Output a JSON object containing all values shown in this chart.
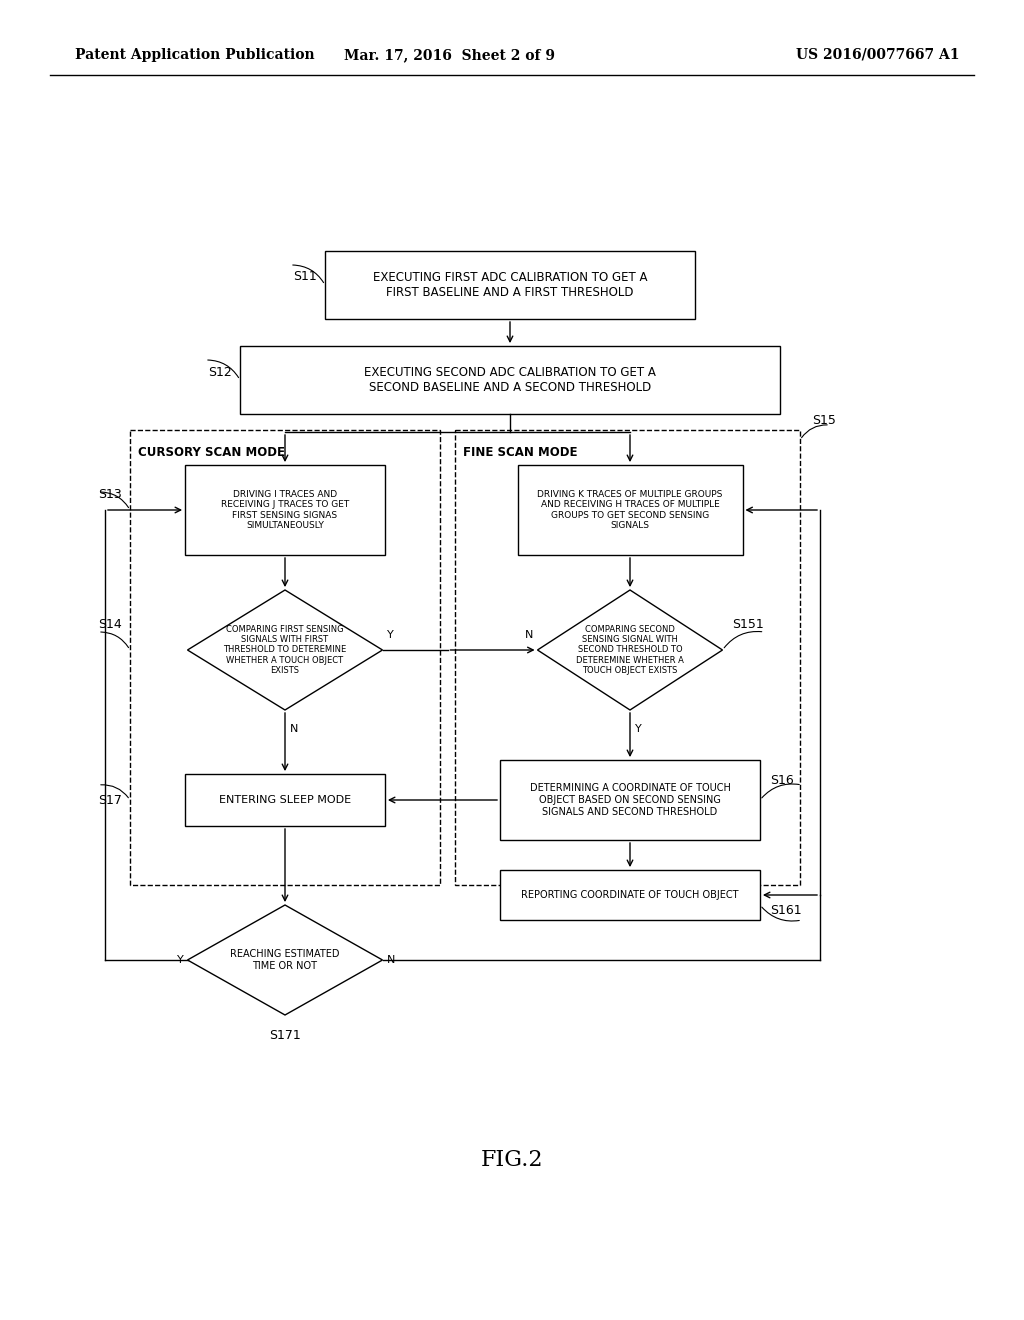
{
  "bg_color": "#ffffff",
  "header": {
    "left": "Patent Application Publication",
    "center": "Mar. 17, 2016  Sheet 2 of 9",
    "right": "US 2016/0077667 A1"
  },
  "figure_label": "FIG.2",
  "s11_text": "EXECUTING FIRST ADC CALIBRATION TO GET A\nFIRST BASELINE AND A FIRST THRESHOLD",
  "s12_text": "EXECUTING SECOND ADC CALIBRATION TO GET A\nSECOND BASELINE AND A SECOND THRESHOLD",
  "s13_text": "DRIVING I TRACES AND\nRECEIVING J TRACES TO GET\nFIRST SENSING SIGNAS\nSIMULTANEOUSLY",
  "s15r_text": "DRIVING K TRACES OF MULTIPLE GROUPS\nAND RECEIVING H TRACES OF MULTIPLE\nGROUPS TO GET SECOND SENSING\nSIGNALS",
  "s14_text": "COMPARING FIRST SENSING\nSIGNALS WITH FIRST\nTHRESHOLD TO DETEREMINE\nWHETHER A TOUCH OBJECT\nEXISTS",
  "s151_text": "COMPARING SECOND\nSENSING SIGNAL WITH\nSECOND THRESHOLD TO\nDETEREMINE WHETHER A\nTOUCH OBJECT EXISTS",
  "s17_text": "ENTERING SLEEP MODE",
  "s16_text": "DETERMINING A COORDINATE OF TOUCH\nOBJECT BASED ON SECOND SENSING\nSIGNALS AND SECOND THRESHOLD",
  "s161_text": "REPORTING COORDINATE OF TOUCH OBJECT",
  "s171_text": "REACHING ESTIMATED\nTIME OR NOT"
}
